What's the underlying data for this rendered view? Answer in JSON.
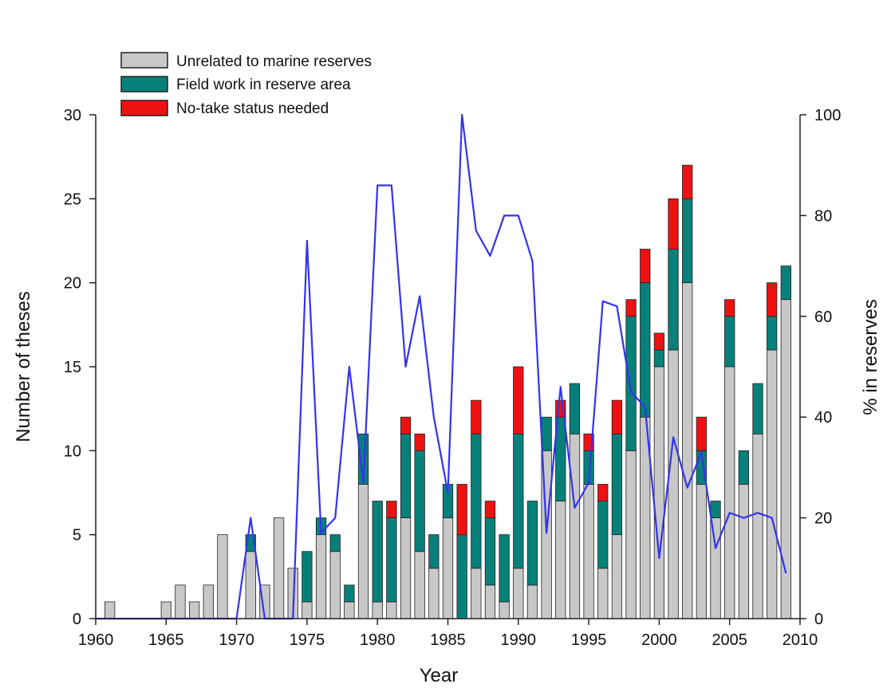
{
  "chart_data": {
    "type": "bar",
    "stacked": true,
    "xlabel": "Year",
    "ylabel_left": "Number of theses",
    "ylabel_right": "% in reserves",
    "xlim": [
      1960,
      2010
    ],
    "x_ticks": [
      1960,
      1965,
      1970,
      1975,
      1980,
      1985,
      1990,
      1995,
      2000,
      2005,
      2010
    ],
    "ylim_left": [
      0,
      30
    ],
    "y_ticks_left": [
      0,
      5,
      10,
      15,
      20,
      25,
      30
    ],
    "ylim_right": [
      0,
      100
    ],
    "y_ticks_right": [
      0,
      20,
      40,
      60,
      80,
      100
    ],
    "legend_placement": "top-left",
    "grid": false,
    "colors": {
      "unrelated": "#c8c8c8",
      "fieldwork": "#08807a",
      "notake": "#ee1111",
      "line": "#3333ee"
    },
    "years": [
      1961,
      1962,
      1963,
      1964,
      1965,
      1966,
      1967,
      1968,
      1969,
      1970,
      1971,
      1972,
      1973,
      1974,
      1975,
      1976,
      1977,
      1978,
      1979,
      1980,
      1981,
      1982,
      1983,
      1984,
      1985,
      1986,
      1987,
      1988,
      1989,
      1990,
      1991,
      1992,
      1993,
      1994,
      1995,
      1996,
      1997,
      1998,
      1999,
      2000,
      2001,
      2002,
      2003,
      2004,
      2005,
      2006,
      2007,
      2008,
      2009
    ],
    "series": [
      {
        "name": "Unrelated to marine reserves",
        "key": "unrelated",
        "values": [
          1,
          0,
          0,
          0,
          1,
          2,
          1,
          2,
          5,
          0,
          4,
          2,
          6,
          3,
          1,
          5,
          4,
          1,
          8,
          1,
          1,
          6,
          4,
          3,
          6,
          0,
          3,
          2,
          1,
          3,
          2,
          10,
          7,
          11,
          8,
          3,
          5,
          10,
          12,
          15,
          16,
          20,
          8,
          6,
          15,
          8,
          11,
          16,
          19
        ]
      },
      {
        "name": "Field work in reserve area",
        "key": "fieldwork",
        "values": [
          0,
          0,
          0,
          0,
          0,
          0,
          0,
          0,
          0,
          0,
          1,
          0,
          0,
          0,
          3,
          1,
          1,
          1,
          3,
          6,
          5,
          5,
          6,
          2,
          2,
          5,
          8,
          4,
          4,
          8,
          5,
          2,
          5,
          3,
          2,
          4,
          6,
          8,
          8,
          1,
          6,
          5,
          2,
          1,
          3,
          2,
          3,
          2,
          2
        ]
      },
      {
        "name": "No-take status needed",
        "key": "notake",
        "values": [
          0,
          0,
          0,
          0,
          0,
          0,
          0,
          0,
          0,
          0,
          0,
          0,
          0,
          0,
          0,
          0,
          0,
          0,
          0,
          0,
          1,
          1,
          1,
          0,
          0,
          3,
          2,
          1,
          0,
          4,
          0,
          0,
          1,
          0,
          1,
          1,
          2,
          1,
          2,
          1,
          3,
          2,
          2,
          0,
          1,
          0,
          0,
          2,
          0
        ]
      }
    ],
    "line": {
      "name": "% in reserves",
      "axis": "right",
      "x": [
        1960,
        1961,
        1962,
        1963,
        1964,
        1965,
        1966,
        1967,
        1968,
        1969,
        1970,
        1971,
        1972,
        1973,
        1974,
        1975,
        1976,
        1977,
        1978,
        1979,
        1980,
        1981,
        1982,
        1983,
        1984,
        1985,
        1986,
        1987,
        1988,
        1989,
        1990,
        1991,
        1992,
        1993,
        1994,
        1995,
        1996,
        1997,
        1998,
        1999,
        2000,
        2001,
        2002,
        2003,
        2004,
        2005,
        2006,
        2007,
        2008,
        2009
      ],
      "y": [
        0,
        0,
        0,
        0,
        0,
        0,
        0,
        0,
        0,
        0,
        0,
        20,
        0,
        0,
        0,
        75,
        17,
        20,
        50,
        27,
        86,
        86,
        50,
        64,
        40,
        25,
        100,
        77,
        72,
        80,
        80,
        71,
        17,
        46,
        22,
        27,
        63,
        62,
        45,
        42,
        12,
        36,
        26,
        33,
        14,
        21,
        20,
        21,
        20,
        9
      ]
    }
  }
}
